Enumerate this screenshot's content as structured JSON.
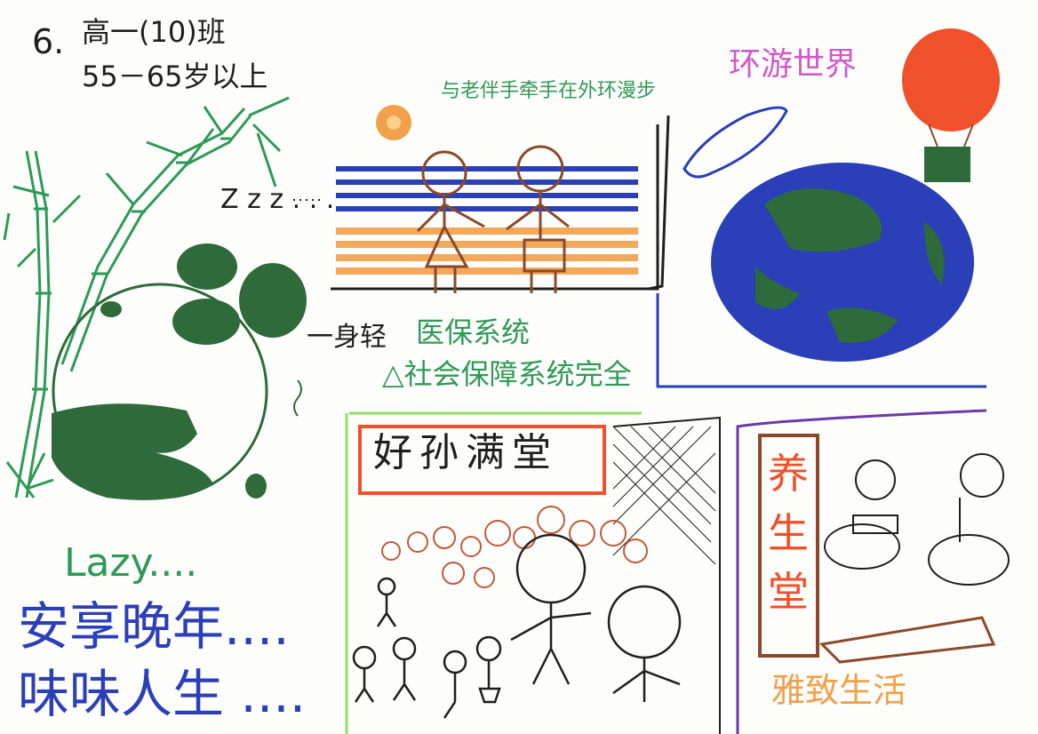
{
  "header": {
    "number": "6.",
    "class_name": "高一(10)班",
    "age_range": "55－65岁以上"
  },
  "captions": {
    "zzz": "Z z z . . .",
    "walk": "与老伴手牵手在外环漫步",
    "travel": "环游世界",
    "body_light": "一身轻",
    "medical": "医保系统",
    "social_security": "△社会保障系统完全",
    "classroom": "好孙满堂",
    "health_hall": "养生堂",
    "elegant_life": "雅致生活",
    "lazy": "Lazy....",
    "enjoy_old_age": "安享晚年....",
    "savor_life": "味味人生 ...."
  },
  "colors": {
    "green": "#2f9a57",
    "dark_green": "#2f6b3a",
    "blue": "#2a3fb8",
    "orange": "#f2a04a",
    "red": "#f0502a",
    "brown": "#8a4a2a",
    "purple": "#6a3aa8",
    "pink": "#d05ac8",
    "black": "#1f1f1f",
    "lime": "#8ee06a"
  }
}
